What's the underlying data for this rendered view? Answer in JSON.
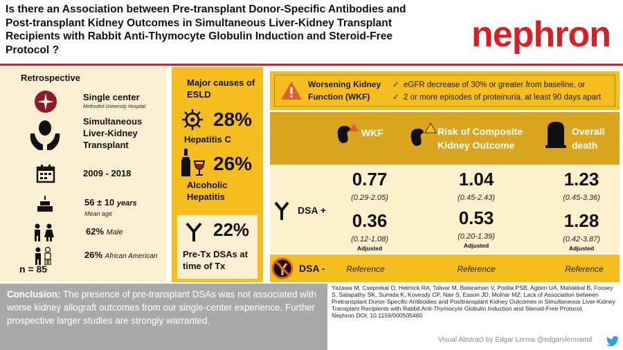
{
  "header": {
    "title": "Is there an Association between Pre-transplant Donor-Specific Antibodies and Post-transplant Kidney Outcomes in Simultaneous Liver-Kidney Transplant Recipients with Rabbit Anti-Thymocyte Globulin Induction and Steroid-Free Protocol ?",
    "journal": "nephron"
  },
  "design": {
    "type": "Retrospective",
    "center": "Single center",
    "hospital": "Methodist University Hospital",
    "transplant": "Simultaneous Liver-Kidney Transplant",
    "years": "2009 - 2018",
    "age_value": "56 ± 10",
    "age_unit": "years",
    "age_caption": "Mean age",
    "male_pct": "62%",
    "male_label": "Male",
    "aa_pct": "26%",
    "aa_label": "African American",
    "n": "n = 85"
  },
  "esld": {
    "heading": "Major causes of ESLD",
    "hepc_pct": "28%",
    "hepc_label": "Hepatitis C",
    "alc_pct": "26%",
    "alc_label": "Alcoholic Hepatitis",
    "dsa_pct": "22%",
    "dsa_label": "Pre-Tx DSAs at time of Tx"
  },
  "wkf": {
    "title": "Worsening Kidney Function (WKF)",
    "criteria": [
      "eGFR decrease of 30% or greater from baseline, or",
      "2 or more episodes of proteinuria, at least 90 days apart"
    ]
  },
  "columns": [
    "WKF",
    "Risk of Composite Kidney Outcome",
    "Overall death"
  ],
  "rows": {
    "dsa_pos_label": "DSA +",
    "dsa_neg_label": "DSA -",
    "adjusted_label": "Adjusted",
    "reference_label": "Reference",
    "unadjusted": [
      {
        "value": "0.77",
        "ci": "(0.29-2.05)"
      },
      {
        "value": "1.04",
        "ci": "(0.45-2.43)"
      },
      {
        "value": "1.23",
        "ci": "(0.45-3.36)"
      }
    ],
    "adjusted": [
      {
        "value": "0.36",
        "ci": "(0.12-1.08)"
      },
      {
        "value": "0.53",
        "ci": "(0.20-1.39)"
      },
      {
        "value": "1.28",
        "ci": "(0.42-3.87)"
      }
    ]
  },
  "conclusion": {
    "label": "Conclusion:",
    "text": "The presence of pre-transplant DSAs was not associated with worse kidney allograft outcomes from our single-center experience. Further prospective larger studies are strongly warranted."
  },
  "citation": {
    "text": "Yazawa M, Cseprekal O, Helmick RA, Talwar M, Balaraman V, Podila PSB, Agbim UA, Maliakkal B, Fossey S, Satapathy SK, Sumida K, Kovesdy CP, Nair S, Eason JD, Molnar MZ: Lack of Association between Pretransplant Donor-Specific Antibodies and Posttransplant Kidney Outcomes in Simultaneous Liver-Kidney Transplant Recipients with Rabbit Anti-Thymocyte Globulin Induction and Steroid-Free Protocol.",
    "doi": "Nephron DOI: 10.1159/000505460"
  },
  "credit": "Visual Abstract by Edgar Lerma @edgarvlermamd",
  "colors": {
    "red": "#d81f26",
    "yellow": "#f5be1e",
    "gold": "#d9a41e",
    "cream": "#fbefd2",
    "grey": "#a9a9a9"
  },
  "icons": [
    "hospital-logo-icon",
    "hands-kidney-icon",
    "calendar-icon",
    "cake-icon",
    "male-female-icon",
    "people-icon",
    "virus-icon",
    "bottle-glass-icon",
    "antibody-icon",
    "warning-icon",
    "kidney-warning-icon",
    "tombstone-icon",
    "no-antibody-icon",
    "twitter-icon"
  ]
}
